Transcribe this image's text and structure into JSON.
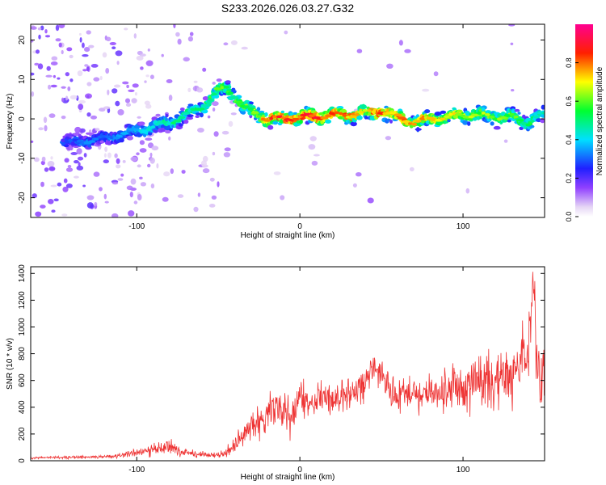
{
  "chart_data": [
    {
      "type": "heatmap",
      "title": "S233.2026.026.03.27.G32",
      "xlabel": "Height of straight line (km)",
      "ylabel": "Frequency (Hz)",
      "xlim": [
        -165,
        150
      ],
      "ylim": [
        -25,
        24
      ],
      "xticks": [
        -100,
        0,
        100
      ],
      "yticks": [
        -20,
        -10,
        0,
        10,
        20
      ],
      "xticklabels": [
        "-100",
        "0",
        "100"
      ],
      "yticklabels": [
        "-20",
        "-10",
        "0",
        "10",
        "20"
      ],
      "colorbar": {
        "label": "Normalized spectral amplitude",
        "range": [
          0,
          1
        ],
        "ticks": [
          0.0,
          0.2,
          0.4,
          0.6,
          0.8
        ],
        "ticklabels": [
          "0.0",
          "0.2",
          "0.4",
          "0.6",
          "0.8"
        ],
        "colormap": "rainbow (white-violet-blue-cyan-green-yellow-red-magenta)"
      },
      "ridge": {
        "x": [
          -140,
          -130,
          -120,
          -110,
          -100,
          -90,
          -80,
          -70,
          -60,
          -55,
          -50,
          -45,
          -40,
          -35,
          -30,
          -25,
          -20,
          -10,
          0,
          10,
          20,
          30,
          40,
          50,
          60,
          70,
          80,
          90,
          100,
          110,
          120,
          130,
          140,
          148
        ],
        "frequency": [
          -6,
          -5.5,
          -5,
          -4,
          -3,
          -2,
          -1,
          1,
          3,
          5,
          7,
          8,
          6,
          3,
          2,
          1,
          0,
          0,
          0.5,
          0.5,
          1,
          1,
          1.5,
          2,
          0.5,
          -1,
          0,
          0.5,
          1,
          1,
          0.5,
          0.5,
          -1,
          1
        ],
        "peak_amplitude": [
          0.3,
          0.35,
          0.3,
          0.35,
          0.4,
          0.45,
          0.5,
          0.5,
          0.5,
          0.55,
          0.6,
          0.6,
          0.55,
          0.6,
          0.6,
          0.7,
          0.85,
          0.9,
          0.85,
          0.9,
          0.85,
          0.8,
          0.75,
          0.85,
          0.8,
          0.8,
          0.75,
          0.7,
          0.7,
          0.65,
          0.65,
          0.6,
          0.55,
          0.5
        ]
      },
      "grid": false
    },
    {
      "type": "line",
      "xlabel": "Height of straight line (km)",
      "ylabel": "SNR (10 * v/v)",
      "xlim": [
        -165,
        150
      ],
      "ylim": [
        0,
        1450
      ],
      "xticks": [
        -100,
        0,
        100
      ],
      "yticks": [
        0,
        200,
        400,
        600,
        800,
        1000,
        1200,
        1400
      ],
      "xticklabels": [
        "-100",
        "0",
        "100"
      ],
      "yticklabels": [
        "0",
        "200",
        "400",
        "600",
        "800",
        "1000",
        "1200",
        "1400"
      ],
      "color": "#ee3333",
      "series": [
        {
          "x": [
            -165,
            -150,
            -140,
            -130,
            -120,
            -110,
            -100,
            -90,
            -85,
            -80,
            -75,
            -70,
            -65,
            -60,
            -55,
            -50,
            -45,
            -40,
            -35,
            -30,
            -25,
            -20,
            -15,
            -10,
            -5,
            0,
            5,
            10,
            15,
            20,
            25,
            30,
            35,
            40,
            45,
            50,
            55,
            60,
            65,
            70,
            75,
            80,
            85,
            90,
            95,
            100,
            105,
            110,
            115,
            120,
            125,
            130,
            135,
            140,
            143,
            145,
            150
          ],
          "y": [
            20,
            25,
            25,
            30,
            30,
            40,
            60,
            80,
            100,
            120,
            70,
            60,
            50,
            50,
            40,
            40,
            60,
            100,
            180,
            250,
            300,
            350,
            420,
            400,
            320,
            480,
            400,
            450,
            500,
            430,
            480,
            520,
            540,
            560,
            720,
            650,
            520,
            480,
            500,
            520,
            480,
            520,
            500,
            520,
            560,
            540,
            580,
            600,
            620,
            600,
            620,
            640,
            650,
            800,
            1400,
            700,
            600
          ],
          "yspread": [
            8,
            10,
            10,
            12,
            12,
            20,
            30,
            50,
            50,
            60,
            40,
            30,
            30,
            25,
            25,
            25,
            40,
            70,
            90,
            120,
            150,
            170,
            180,
            180,
            150,
            150,
            120,
            130,
            120,
            110,
            120,
            120,
            130,
            140,
            120,
            110,
            120,
            130,
            130,
            140,
            150,
            160,
            170,
            180,
            190,
            200,
            210,
            220,
            230,
            240,
            250,
            260,
            270,
            280,
            200,
            280,
            250
          ]
        }
      ],
      "grid": false
    }
  ]
}
